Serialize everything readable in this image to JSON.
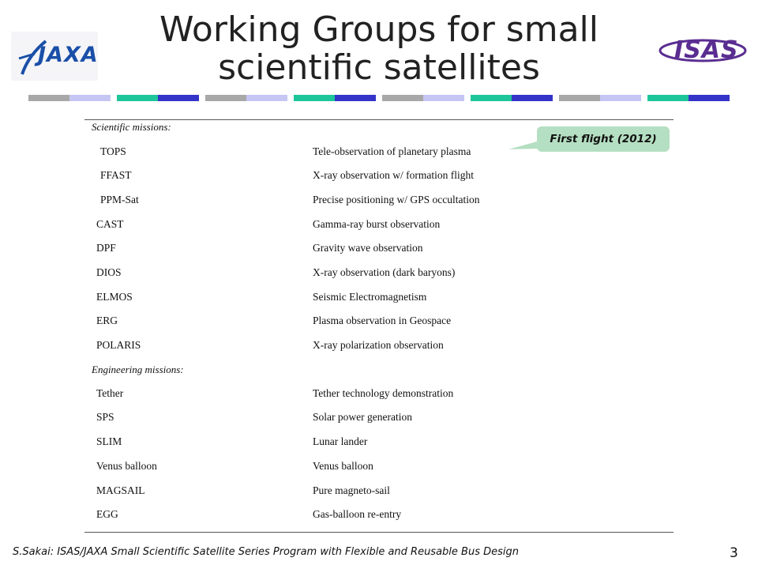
{
  "title": {
    "line1": "Working Groups for small",
    "line2": "scientific satellites"
  },
  "logos": {
    "left": "JAXA",
    "right": "ISAS"
  },
  "callout": "First flight (2012)",
  "sections": {
    "scientific": {
      "label": "Scientific missions:",
      "rows": [
        {
          "name": "TOPS",
          "desc": "Tele-observation of planetary plasma"
        },
        {
          "name": "FFAST",
          "desc": "X-ray observation w/ formation flight"
        },
        {
          "name": "PPM-Sat",
          "desc": "Precise positioning w/ GPS occultation"
        },
        {
          "name": "CAST",
          "desc": "Gamma-ray burst observation"
        },
        {
          "name": "DPF",
          "desc": "Gravity wave observation"
        },
        {
          "name": "DIOS",
          "desc": "X-ray observation (dark baryons)"
        },
        {
          "name": "ELMOS",
          "desc": "Seismic Electromagnetism"
        },
        {
          "name": "ERG",
          "desc": "Plasma observation in Geospace"
        },
        {
          "name": "POLARIS",
          "desc": "X-ray polarization observation"
        }
      ]
    },
    "engineering": {
      "label": "Engineering missions:",
      "rows": [
        {
          "name": "Tether",
          "desc": "Tether technology demonstration"
        },
        {
          "name": "SPS",
          "desc": "Solar power generation"
        },
        {
          "name": "SLIM",
          "desc": "Lunar lander"
        },
        {
          "name": "Venus balloon",
          "desc": "Venus balloon"
        },
        {
          "name": "MAGSAIL",
          "desc": "Pure magneto-sail"
        },
        {
          "name": "EGG",
          "desc": "Gas-balloon re-entry"
        }
      ]
    }
  },
  "footer": "S.Sakai: ISAS/JAXA Small Scientific Satellite Series Program with Flexible and Reusable Bus Design",
  "page_number": "3",
  "colors": {
    "title": "#222222",
    "callout_bg": "#b5dfc2",
    "bar_gray": "#a8a8a8",
    "bar_lavender": "#c6c6f4",
    "bar_teal": "#1dc59a",
    "bar_blue": "#3434c8",
    "jaxa_blue": "#1a4fa8",
    "isas_purple": "#5a2d91"
  }
}
